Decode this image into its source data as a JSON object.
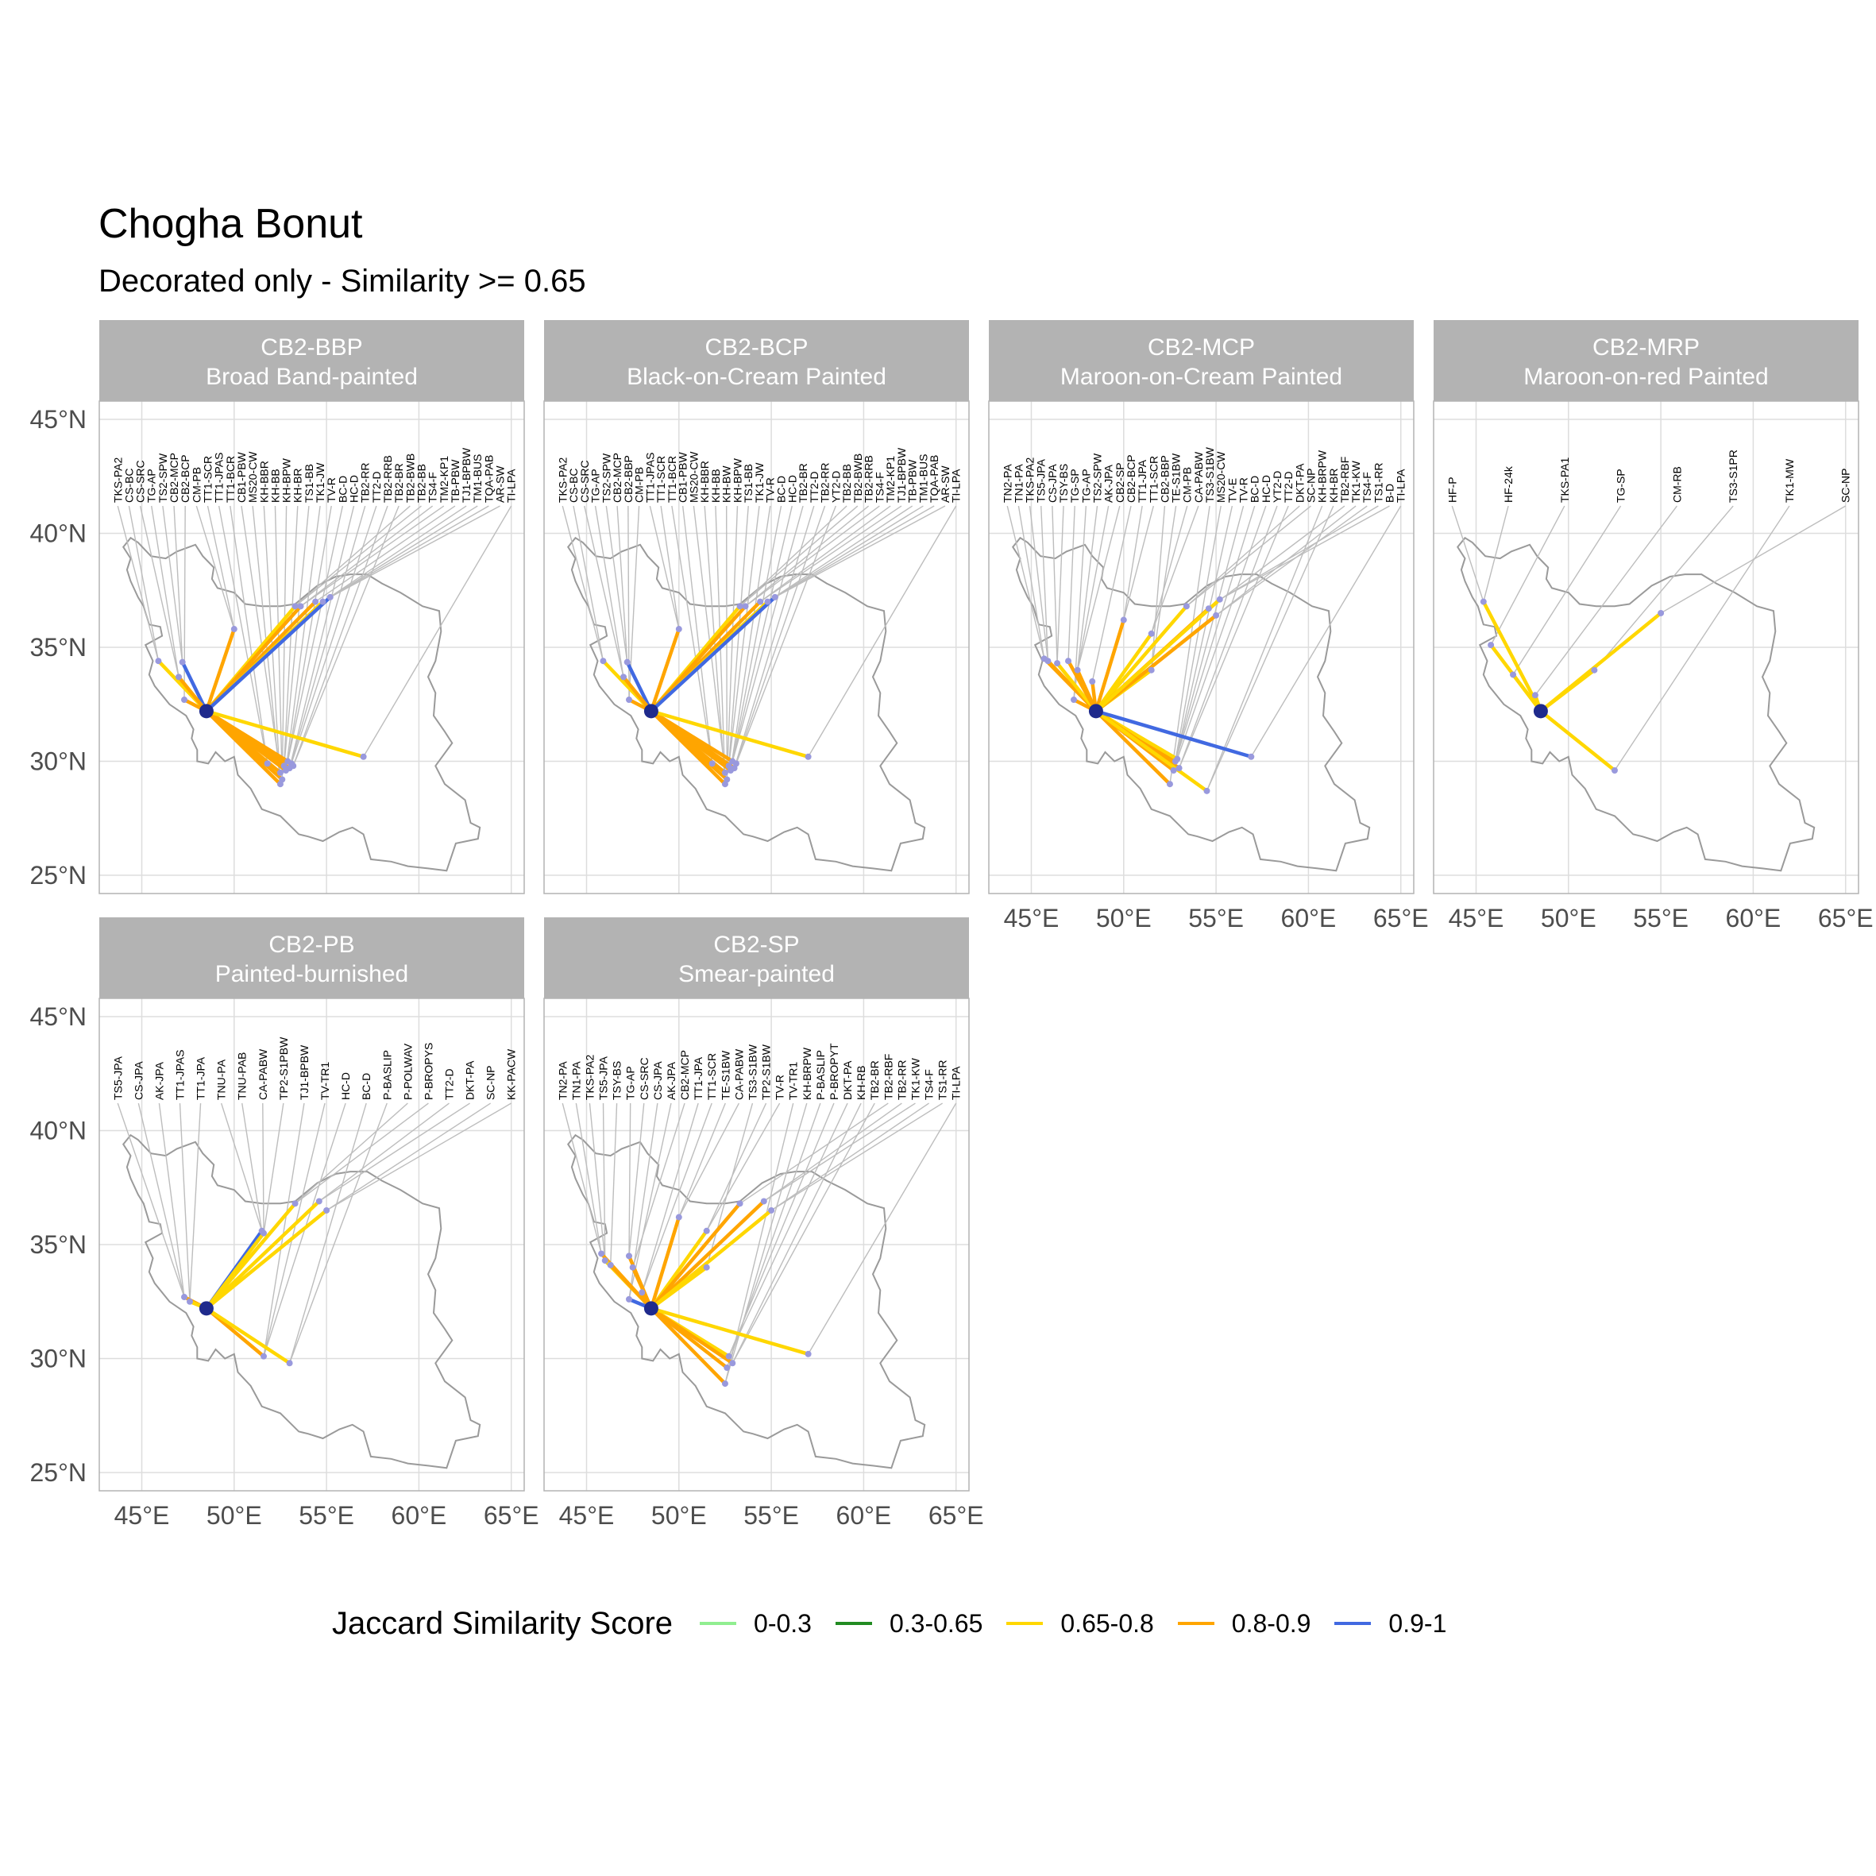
{
  "title": "Chogha Bonut",
  "subtitle": "Decorated only - Similarity >= 0.65",
  "legend": {
    "title": "Jaccard Similarity Score",
    "items": [
      {
        "label": "0-0.3",
        "color": "#90EE90"
      },
      {
        "label": "0.3-0.65",
        "color": "#228B22"
      },
      {
        "label": "0.65-0.8",
        "color": "#FFD700"
      },
      {
        "label": "0.8-0.9",
        "color": "#FFA500"
      },
      {
        "label": "0.9-1",
        "color": "#4169E1"
      }
    ]
  },
  "colors": {
    "strip_bg": "#B3B3B3",
    "strip_text": "#FFFFFF",
    "grid": "#DDDDDD",
    "border": "#B3B3B3",
    "outline": "#9A9A9A",
    "leader": "#BDBDBD",
    "site_dot": "#9999DD",
    "origin": "#1F2A8C"
  },
  "chart_data": {
    "type": "map",
    "origin_site": {
      "name": "Chogha Bonut",
      "lon": 48.5,
      "lat": 32.2
    },
    "x_ticks": [
      {
        "value": 45,
        "label": "45°E"
      },
      {
        "value": 50,
        "label": "50°E"
      },
      {
        "value": 55,
        "label": "55°E"
      },
      {
        "value": 60,
        "label": "60°E"
      },
      {
        "value": 65,
        "label": "65°E"
      }
    ],
    "y_ticks": [
      {
        "value": 25,
        "label": "25°N"
      },
      {
        "value": 30,
        "label": "30°N"
      },
      {
        "value": 35,
        "label": "35°N"
      },
      {
        "value": 40,
        "label": "40°N"
      },
      {
        "value": 45,
        "label": "45°N"
      }
    ],
    "xlim": [
      42.7,
      65.7
    ],
    "ylim": [
      24.2,
      45.8
    ],
    "panels": [
      {
        "code": "CB2-BBP",
        "name": "Broad Band-painted",
        "labels": [
          "TKS-PA2",
          "CS-BC",
          "CS-SRC",
          "TG-AP",
          "TS2-SPW",
          "CB2-MCP",
          "CB2-BCP",
          "CM-PB",
          "TT1-SCR",
          "TT1-JPAS",
          "TT1-BCR",
          "CB1-PBW",
          "MS20-CW",
          "KH-BBR",
          "KH-BB",
          "KH-BPW",
          "KH-BR",
          "TS1-BB",
          "TK1-JW",
          "TV-R",
          "BC-D",
          "HC-D",
          "TB2-RR",
          "TT2-D",
          "TB2-RRB",
          "TB2-BR",
          "TB2-BWB",
          "TB2-BB",
          "TS4-F",
          "TM2-KP1",
          "TB-PBW",
          "TJ1-BPBW",
          "TM1-BUS",
          "TQA-PAB",
          "AR-SW",
          "TI-LPA"
        ],
        "sites": [
          {
            "lon": 45.9,
            "lat": 34.4,
            "cls": "0.65-0.8"
          },
          {
            "lon": 47.2,
            "lat": 34.35,
            "cls": "0.9-1"
          },
          {
            "lon": 47.0,
            "lat": 33.7,
            "cls": "0.8-0.9"
          },
          {
            "lon": 47.3,
            "lat": 32.7,
            "cls": "0.8-0.9"
          },
          {
            "lon": 50.0,
            "lat": 35.8,
            "cls": "0.8-0.9"
          },
          {
            "lon": 51.8,
            "lat": 29.9,
            "cls": "0.8-0.9"
          },
          {
            "lon": 52.5,
            "lat": 29.5,
            "cls": "0.8-0.9"
          },
          {
            "lon": 52.5,
            "lat": 29.0,
            "cls": "0.8-0.9"
          },
          {
            "lon": 52.6,
            "lat": 29.2,
            "cls": "0.8-0.9"
          },
          {
            "lon": 52.7,
            "lat": 29.8,
            "cls": "0.8-0.9"
          },
          {
            "lon": 52.8,
            "lat": 29.6,
            "cls": "0.8-0.9"
          },
          {
            "lon": 52.9,
            "lat": 30.0,
            "cls": "0.8-0.9"
          },
          {
            "lon": 53.0,
            "lat": 29.7,
            "cls": "0.8-0.9"
          },
          {
            "lon": 53.1,
            "lat": 29.9,
            "cls": "0.8-0.9"
          },
          {
            "lon": 53.2,
            "lat": 29.8,
            "cls": "0.8-0.9"
          },
          {
            "lon": 53.3,
            "lat": 36.8,
            "cls": "0.65-0.8"
          },
          {
            "lon": 53.6,
            "lat": 36.8,
            "cls": "0.8-0.9"
          },
          {
            "lon": 54.4,
            "lat": 37.0,
            "cls": "0.8-0.9"
          },
          {
            "lon": 54.8,
            "lat": 37.0,
            "cls": "0.65-0.8"
          },
          {
            "lon": 55.2,
            "lat": 37.2,
            "cls": "0.9-1"
          },
          {
            "lon": 57.0,
            "lat": 30.2,
            "cls": "0.65-0.8"
          }
        ]
      },
      {
        "code": "CB2-BCP",
        "name": "Black-on-Cream Painted",
        "labels": [
          "TKS-PA2",
          "CS-BC",
          "CS-SRC",
          "TG-AP",
          "TS2-SPW",
          "CB2-MCP",
          "CB2-BBP",
          "CM-PB",
          "TT1-JPAS",
          "TT1-SCR",
          "TT1-BCR",
          "CB1-PBW",
          "MS20-CW",
          "KH-BBR",
          "KH-BB",
          "KH-BW",
          "KH-BPW",
          "TS1-BB",
          "TK1-JW",
          "TV-R",
          "BC-D",
          "HC-D",
          "TB2-BR",
          "TT2-D",
          "TB2-RR",
          "YT2-D",
          "TB2-BB",
          "TB2-BWB",
          "TB2-RRB",
          "TS4-F",
          "TM2-KP1",
          "TJ1-BPBW",
          "TB-PBW",
          "TM1-BUS",
          "TQA-PAB",
          "AR-SW",
          "TI-LPA"
        ],
        "sites": [
          {
            "lon": 45.9,
            "lat": 34.4,
            "cls": "0.65-0.8"
          },
          {
            "lon": 47.2,
            "lat": 34.35,
            "cls": "0.9-1"
          },
          {
            "lon": 47.0,
            "lat": 33.7,
            "cls": "0.8-0.9"
          },
          {
            "lon": 47.3,
            "lat": 32.7,
            "cls": "0.8-0.9"
          },
          {
            "lon": 50.0,
            "lat": 35.8,
            "cls": "0.8-0.9"
          },
          {
            "lon": 51.8,
            "lat": 29.9,
            "cls": "0.8-0.9"
          },
          {
            "lon": 52.5,
            "lat": 29.5,
            "cls": "0.8-0.9"
          },
          {
            "lon": 52.5,
            "lat": 29.0,
            "cls": "0.8-0.9"
          },
          {
            "lon": 52.6,
            "lat": 29.2,
            "cls": "0.8-0.9"
          },
          {
            "lon": 52.7,
            "lat": 29.8,
            "cls": "0.8-0.9"
          },
          {
            "lon": 52.8,
            "lat": 29.6,
            "cls": "0.8-0.9"
          },
          {
            "lon": 52.9,
            "lat": 30.0,
            "cls": "0.8-0.9"
          },
          {
            "lon": 53.0,
            "lat": 29.7,
            "cls": "0.8-0.9"
          },
          {
            "lon": 53.1,
            "lat": 29.9,
            "cls": "0.8-0.9"
          },
          {
            "lon": 53.3,
            "lat": 36.8,
            "cls": "0.65-0.8"
          },
          {
            "lon": 53.6,
            "lat": 36.8,
            "cls": "0.8-0.9"
          },
          {
            "lon": 54.4,
            "lat": 37.0,
            "cls": "0.8-0.9"
          },
          {
            "lon": 54.8,
            "lat": 37.0,
            "cls": "0.65-0.8"
          },
          {
            "lon": 55.2,
            "lat": 37.2,
            "cls": "0.9-1"
          },
          {
            "lon": 57.0,
            "lat": 30.2,
            "cls": "0.65-0.8"
          }
        ]
      },
      {
        "code": "CB2-MCP",
        "name": "Maroon-on-Cream Painted",
        "labels": [
          "TN2-PA",
          "TN1-PA",
          "TKS-PA2",
          "TS5-JPA",
          "CS-JPA",
          "TSY-BS",
          "TG-SP",
          "TG-AP",
          "TS2-SPW",
          "AK-JPA",
          "CB2-SP",
          "CB2-BCP",
          "TT1-JPA",
          "TT1-SCR",
          "CB2-BBP",
          "TE-S1BW",
          "CM-PB",
          "CA-PABW",
          "TS3-S1BW",
          "MS20-CW",
          "TV-E",
          "TV-R",
          "BC-D",
          "HC-D",
          "YT2-D",
          "TT2-D",
          "DKT-PA",
          "SC-NP",
          "KH-BRPW",
          "KH-BR",
          "TB2-RBF",
          "TK1-KW",
          "TS4-F",
          "TS1-RR",
          "B-D",
          "TI-LPA"
        ],
        "sites": [
          {
            "lon": 45.7,
            "lat": 34.5,
            "cls": "0.8-0.9"
          },
          {
            "lon": 45.9,
            "lat": 34.4,
            "cls": "0.8-0.9"
          },
          {
            "lon": 46.4,
            "lat": 34.3,
            "cls": "0.65-0.8"
          },
          {
            "lon": 47.0,
            "lat": 34.4,
            "cls": "0.8-0.9"
          },
          {
            "lon": 47.3,
            "lat": 32.7,
            "cls": "0.8-0.9"
          },
          {
            "lon": 47.5,
            "lat": 34.0,
            "cls": "0.8-0.9"
          },
          {
            "lon": 48.3,
            "lat": 33.5,
            "cls": "0.8-0.9"
          },
          {
            "lon": 50.0,
            "lat": 36.2,
            "cls": "0.8-0.9"
          },
          {
            "lon": 51.5,
            "lat": 34.0,
            "cls": "0.65-0.8"
          },
          {
            "lon": 51.5,
            "lat": 35.6,
            "cls": "0.65-0.8"
          },
          {
            "lon": 52.5,
            "lat": 29.0,
            "cls": "0.8-0.9"
          },
          {
            "lon": 52.7,
            "lat": 29.6,
            "cls": "0.8-0.9"
          },
          {
            "lon": 52.8,
            "lat": 30.0,
            "cls": "0.8-0.9"
          },
          {
            "lon": 52.9,
            "lat": 30.1,
            "cls": "0.65-0.8"
          },
          {
            "lon": 53.0,
            "lat": 29.7,
            "cls": "0.8-0.9"
          },
          {
            "lon": 53.4,
            "lat": 36.8,
            "cls": "0.65-0.8"
          },
          {
            "lon": 54.5,
            "lat": 28.7,
            "cls": "0.65-0.8"
          },
          {
            "lon": 54.6,
            "lat": 36.7,
            "cls": "0.8-0.9"
          },
          {
            "lon": 55.0,
            "lat": 36.4,
            "cls": "0.8-0.9"
          },
          {
            "lon": 55.2,
            "lat": 37.1,
            "cls": "0.65-0.8"
          },
          {
            "lon": 56.9,
            "lat": 30.2,
            "cls": "0.9-1"
          }
        ]
      },
      {
        "code": "CB2-MRP",
        "name": "Maroon-on-red Painted",
        "labels": [
          "HF-P",
          "HF-24k",
          "TKS-PA1",
          "TG-SP",
          "CM-RB",
          "TS3-S1PR",
          "TK1-MW",
          "SC-NP"
        ],
        "sites": [
          {
            "lon": 45.4,
            "lat": 37.0,
            "cls": "0.65-0.8"
          },
          {
            "lon": 45.8,
            "lat": 35.1,
            "cls": "0.65-0.8"
          },
          {
            "lon": 47.0,
            "lat": 33.8,
            "cls": "0.65-0.8"
          },
          {
            "lon": 48.2,
            "lat": 32.9,
            "cls": "0.65-0.8"
          },
          {
            "lon": 51.4,
            "lat": 34.0,
            "cls": "0.65-0.8"
          },
          {
            "lon": 52.5,
            "lat": 29.6,
            "cls": "0.65-0.8"
          },
          {
            "lon": 55.0,
            "lat": 36.5,
            "cls": "0.65-0.8"
          }
        ]
      },
      {
        "code": "CB2-PB",
        "name": "Painted-burnished",
        "labels": [
          "TS5-JPA",
          "CS-JPA",
          "AK-JPA",
          "TT1-JPAS",
          "TT1-JPA",
          "TNU-PA",
          "TNU-PAB",
          "CA-PABW",
          "TP2-S1PBW",
          "TJ1-BPBW",
          "TV-TR1",
          "HC-D",
          "BC-D",
          "P-BASLIP",
          "P-POLWAV",
          "P-BROPYS",
          "TT2-D",
          "DKT-PA",
          "SC-NP",
          "KK-PACW"
        ],
        "sites": [
          {
            "lon": 47.3,
            "lat": 32.7,
            "cls": "0.8-0.9"
          },
          {
            "lon": 47.6,
            "lat": 32.5,
            "cls": "0.65-0.8"
          },
          {
            "lon": 51.5,
            "lat": 35.6,
            "cls": "0.9-1"
          },
          {
            "lon": 51.6,
            "lat": 35.5,
            "cls": "0.65-0.8"
          },
          {
            "lon": 51.6,
            "lat": 30.1,
            "cls": "0.8-0.9"
          },
          {
            "lon": 53.0,
            "lat": 29.8,
            "cls": "0.65-0.8"
          },
          {
            "lon": 53.3,
            "lat": 36.8,
            "cls": "0.65-0.8"
          },
          {
            "lon": 54.6,
            "lat": 36.9,
            "cls": "0.65-0.8"
          },
          {
            "lon": 55.0,
            "lat": 36.5,
            "cls": "0.65-0.8"
          }
        ]
      },
      {
        "code": "CB2-SP",
        "name": "Smear-painted",
        "labels": [
          "TN2-PA",
          "TN1-PA",
          "TKS-PA2",
          "TS5-JPA",
          "TSY-BS",
          "TG-AP",
          "CS-SRC",
          "CS-JPA",
          "AK-JPA",
          "CB2-MCP",
          "TT1-JPA",
          "TT1-SCR",
          "TE-S1BW",
          "CA-PABW",
          "TS3-S1BW",
          "TP2-S1BW",
          "TV-R",
          "TV-TR1",
          "KH-BRPW",
          "P-BASLIP",
          "P-BROPYT",
          "DKT-PA",
          "KH-RB",
          "TB2-BR",
          "TB2-RBF",
          "TB2-RR",
          "TK1-KW",
          "TS4-F",
          "TS1-RR",
          "TI-LPA"
        ],
        "sites": [
          {
            "lon": 45.8,
            "lat": 34.6,
            "cls": "0.8-0.9"
          },
          {
            "lon": 46.0,
            "lat": 34.3,
            "cls": "0.65-0.8"
          },
          {
            "lon": 46.3,
            "lat": 34.1,
            "cls": "0.8-0.9"
          },
          {
            "lon": 47.3,
            "lat": 34.5,
            "cls": "0.8-0.9"
          },
          {
            "lon": 47.3,
            "lat": 32.6,
            "cls": "0.9-1"
          },
          {
            "lon": 47.5,
            "lat": 34.0,
            "cls": "0.8-0.9"
          },
          {
            "lon": 48.0,
            "lat": 32.9,
            "cls": "0.8-0.9"
          },
          {
            "lon": 50.0,
            "lat": 36.2,
            "cls": "0.8-0.9"
          },
          {
            "lon": 51.5,
            "lat": 34.0,
            "cls": "0.65-0.8"
          },
          {
            "lon": 51.5,
            "lat": 35.6,
            "cls": "0.65-0.8"
          },
          {
            "lon": 52.5,
            "lat": 28.9,
            "cls": "0.8-0.9"
          },
          {
            "lon": 52.6,
            "lat": 29.6,
            "cls": "0.8-0.9"
          },
          {
            "lon": 52.7,
            "lat": 30.1,
            "cls": "0.65-0.8"
          },
          {
            "lon": 52.9,
            "lat": 29.8,
            "cls": "0.8-0.9"
          },
          {
            "lon": 53.3,
            "lat": 36.8,
            "cls": "0.8-0.9"
          },
          {
            "lon": 54.6,
            "lat": 36.9,
            "cls": "0.8-0.9"
          },
          {
            "lon": 55.0,
            "lat": 36.5,
            "cls": "0.65-0.8"
          },
          {
            "lon": 57.0,
            "lat": 30.2,
            "cls": "0.65-0.8"
          }
        ]
      }
    ]
  }
}
